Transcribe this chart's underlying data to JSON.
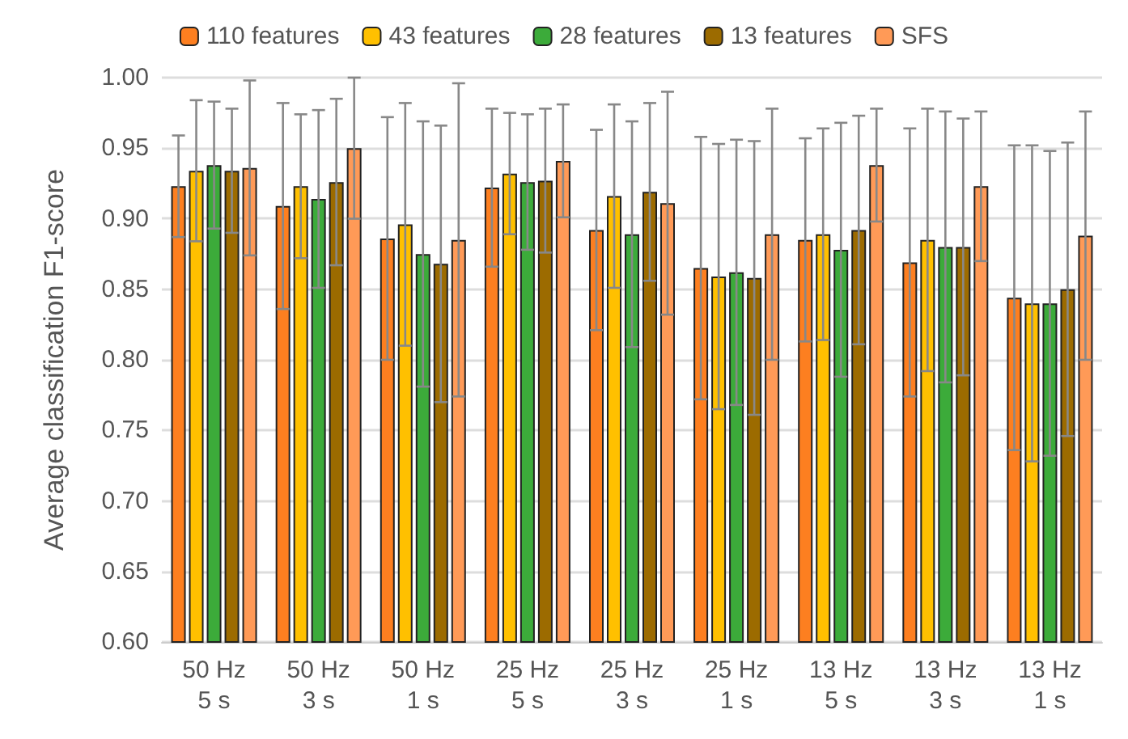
{
  "chart_data": {
    "type": "bar",
    "ylabel": "Average classification F1-score",
    "categories": [
      "50 Hz\n5 s",
      "50 Hz\n3 s",
      "50 Hz\n1 s",
      "25 Hz\n5 s",
      "25 Hz\n3 s",
      "25 Hz\n1 s",
      "13 Hz\n5 s",
      "13 Hz\n3 s",
      "13 Hz\n1 s"
    ],
    "series": [
      {
        "name": "110 features",
        "color": "#fd7f20",
        "values": [
          0.923,
          0.909,
          0.886,
          0.922,
          0.892,
          0.865,
          0.885,
          0.869,
          0.844
        ],
        "errors": [
          0.036,
          0.073,
          0.086,
          0.056,
          0.071,
          0.093,
          0.072,
          0.095,
          0.108
        ]
      },
      {
        "name": "43 features",
        "color": "#ffc000",
        "values": [
          0.934,
          0.923,
          0.896,
          0.932,
          0.916,
          0.859,
          0.889,
          0.885,
          0.84
        ],
        "errors": [
          0.05,
          0.051,
          0.086,
          0.043,
          0.065,
          0.094,
          0.075,
          0.093,
          0.112
        ]
      },
      {
        "name": "28 features",
        "color": "#3cab3a",
        "values": [
          0.938,
          0.914,
          0.875,
          0.926,
          0.889,
          0.862,
          0.878,
          0.88,
          0.84
        ],
        "errors": [
          0.045,
          0.063,
          0.094,
          0.048,
          0.08,
          0.094,
          0.09,
          0.096,
          0.108
        ]
      },
      {
        "name": "13 features",
        "color": "#9c6b00",
        "values": [
          0.934,
          0.926,
          0.868,
          0.927,
          0.919,
          0.858,
          0.892,
          0.88,
          0.85
        ],
        "errors": [
          0.044,
          0.059,
          0.098,
          0.051,
          0.063,
          0.097,
          0.081,
          0.091,
          0.104
        ]
      },
      {
        "name": "SFS",
        "color": "#ff9a57",
        "values": [
          0.936,
          0.95,
          0.885,
          0.941,
          0.911,
          0.889,
          0.938,
          0.923,
          0.888
        ],
        "errors": [
          0.062,
          0.05,
          0.111,
          0.04,
          0.079,
          0.089,
          0.04,
          0.053,
          0.088
        ]
      }
    ],
    "ylim": [
      0.6,
      1.0
    ],
    "yticks": [
      {
        "value": 0.6,
        "label": "0.60"
      },
      {
        "value": 0.65,
        "label": "0.65"
      },
      {
        "value": 0.7,
        "label": "0.70"
      },
      {
        "value": 0.75,
        "label": "0.75"
      },
      {
        "value": 0.8,
        "label": "0.80"
      },
      {
        "value": 0.85,
        "label": "0.85"
      },
      {
        "value": 0.9,
        "label": "0.90"
      },
      {
        "value": 0.95,
        "label": "0.95"
      },
      {
        "value": 1.0,
        "label": "1.00"
      }
    ],
    "grid": "y",
    "legend": "top"
  }
}
